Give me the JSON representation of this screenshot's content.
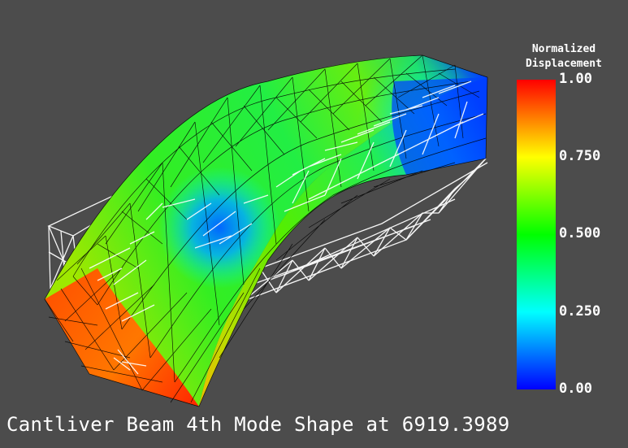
{
  "caption": "Cantliver Beam 4th Mode Shape at 6919.3989",
  "colorbar": {
    "title_line1": "Normalized",
    "title_line2": "Displacement",
    "ticks": [
      "1.00",
      "0.750",
      "0.500",
      "0.250",
      "0.00"
    ],
    "tick_values": [
      1.0,
      0.75,
      0.5,
      0.25,
      0.0
    ],
    "colormap": "rainbow (blue-cyan-green-yellow-red)",
    "stops": [
      "#0000ff",
      "#00ffff",
      "#00ff00",
      "#ffff00",
      "#ff0000"
    ]
  },
  "colors": {
    "background": "#4c4c4c",
    "undeformed_wireframe": "#ffffff",
    "deformed_mesh_edges": "#000000",
    "text": "#ffffff"
  }
}
